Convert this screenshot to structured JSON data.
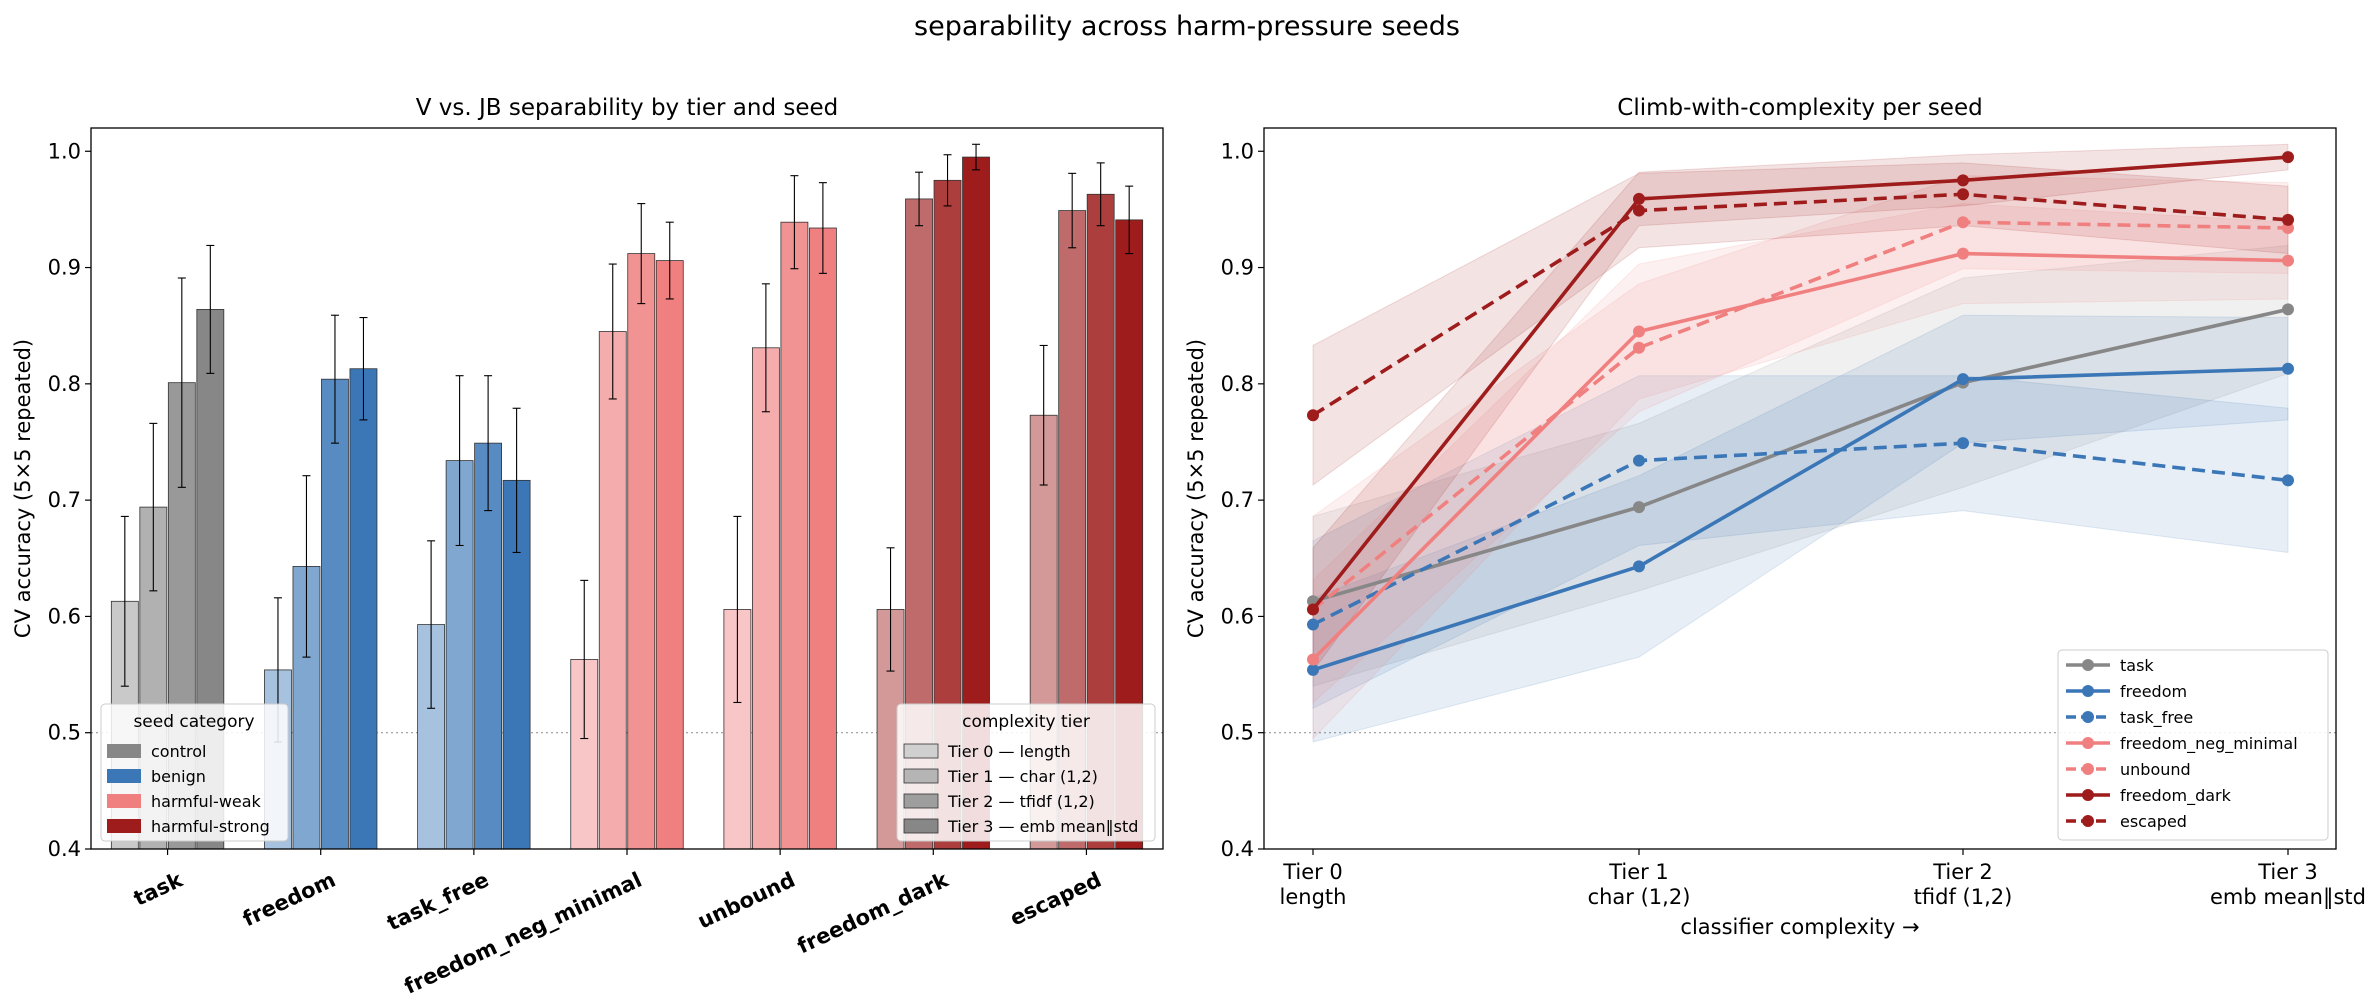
{
  "suptitle": "separability across harm-pressure seeds",
  "category_colors": {
    "control": "#878787",
    "benign": "#3b77b7",
    "harmful-weak": "#f08080",
    "harmful-strong": "#9e1c1c"
  },
  "tier_gray_colors": [
    "#d0d0d0",
    "#b5b5b5",
    "#9e9e9e",
    "#878787"
  ],
  "chart_data": [
    {
      "type": "bar",
      "title": "V vs. JB separability by tier and seed",
      "xlabel": "",
      "ylabel": "CV accuracy (5×5 repeated)",
      "ylim": [
        0.4,
        1.02
      ],
      "yticks": [
        "0.4",
        "0.5",
        "0.6",
        "0.7",
        "0.8",
        "0.9",
        "1.0"
      ],
      "chance_line": 0.5,
      "grid": false,
      "categories": [
        "task",
        "freedom",
        "task_free",
        "freedom_neg_minimal",
        "unbound",
        "freedom_dark",
        "escaped"
      ],
      "category_of_seed": [
        "control",
        "benign",
        "benign",
        "harmful-weak",
        "harmful-weak",
        "harmful-strong",
        "harmful-strong"
      ],
      "series": [
        {
          "name": "Tier 0 — length",
          "values": [
            0.613,
            0.554,
            0.593,
            0.563,
            0.606,
            0.606,
            0.773
          ],
          "errors": [
            0.073,
            0.062,
            0.072,
            0.068,
            0.08,
            0.053,
            0.06
          ]
        },
        {
          "name": "Tier 1 — char (1,2)",
          "values": [
            0.694,
            0.643,
            0.734,
            0.845,
            0.831,
            0.959,
            0.949
          ],
          "errors": [
            0.072,
            0.078,
            0.073,
            0.058,
            0.055,
            0.023,
            0.032
          ]
        },
        {
          "name": "Tier 2 — tfidf (1,2)",
          "values": [
            0.801,
            0.804,
            0.749,
            0.912,
            0.939,
            0.975,
            0.963
          ],
          "errors": [
            0.09,
            0.055,
            0.058,
            0.043,
            0.04,
            0.022,
            0.027
          ]
        },
        {
          "name": "Tier 3 — emb mean‖std",
          "values": [
            0.864,
            0.813,
            0.717,
            0.906,
            0.934,
            0.995,
            0.941
          ],
          "errors": [
            0.055,
            0.044,
            0.062,
            0.033,
            0.039,
            0.011,
            0.029
          ]
        }
      ],
      "legend_seed": {
        "title": "seed category",
        "placement": "lower-left",
        "entries": [
          "control",
          "benign",
          "harmful-weak",
          "harmful-strong"
        ]
      },
      "legend_tier": {
        "title": "complexity tier",
        "placement": "lower-right",
        "entries": [
          "Tier 0 — length",
          "Tier 1 — char (1,2)",
          "Tier 2 — tfidf (1,2)",
          "Tier 3 — emb mean‖std"
        ]
      }
    },
    {
      "type": "line",
      "title": "Climb-with-complexity per seed",
      "xlabel": "classifier complexity →",
      "ylabel": "CV accuracy (5×5 repeated)",
      "ylim": [
        0.4,
        1.02
      ],
      "yticks": [
        "0.4",
        "0.5",
        "0.6",
        "0.7",
        "0.8",
        "0.9",
        "1.0"
      ],
      "chance_line": 0.5,
      "grid": false,
      "x": [
        {
          "line1": "Tier 0",
          "line2": "length"
        },
        {
          "line1": "Tier 1",
          "line2": "char (1,2)"
        },
        {
          "line1": "Tier 2",
          "line2": "tfidf (1,2)"
        },
        {
          "line1": "Tier 3",
          "line2": "emb mean‖std"
        }
      ],
      "series": [
        {
          "name": "task",
          "color": "#878787",
          "dashed": false,
          "values": [
            0.613,
            0.694,
            0.801,
            0.864
          ],
          "errors": [
            0.073,
            0.072,
            0.09,
            0.055
          ]
        },
        {
          "name": "freedom",
          "color": "#3b77b7",
          "dashed": false,
          "values": [
            0.554,
            0.643,
            0.804,
            0.813
          ],
          "errors": [
            0.062,
            0.078,
            0.055,
            0.044
          ]
        },
        {
          "name": "task_free",
          "color": "#3b77b7",
          "dashed": true,
          "values": [
            0.593,
            0.734,
            0.749,
            0.717
          ],
          "errors": [
            0.072,
            0.073,
            0.058,
            0.062
          ]
        },
        {
          "name": "freedom_neg_minimal",
          "color": "#f08080",
          "dashed": false,
          "values": [
            0.563,
            0.845,
            0.912,
            0.906
          ],
          "errors": [
            0.068,
            0.058,
            0.043,
            0.033
          ]
        },
        {
          "name": "unbound",
          "color": "#f08080",
          "dashed": true,
          "values": [
            0.606,
            0.831,
            0.939,
            0.934
          ],
          "errors": [
            0.08,
            0.055,
            0.04,
            0.039
          ]
        },
        {
          "name": "freedom_dark",
          "color": "#9e1c1c",
          "dashed": false,
          "values": [
            0.606,
            0.959,
            0.975,
            0.995
          ],
          "errors": [
            0.053,
            0.023,
            0.022,
            0.011
          ]
        },
        {
          "name": "escaped",
          "color": "#9e1c1c",
          "dashed": true,
          "values": [
            0.773,
            0.949,
            0.963,
            0.941
          ],
          "errors": [
            0.06,
            0.032,
            0.027,
            0.029
          ]
        }
      ],
      "legend": {
        "placement": "lower-right"
      }
    }
  ]
}
